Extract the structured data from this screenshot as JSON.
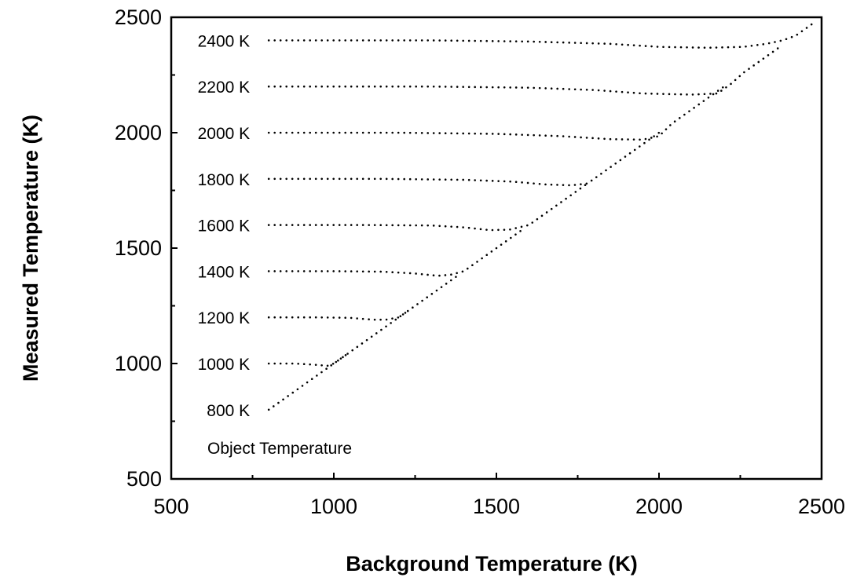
{
  "chart_data": {
    "type": "scatter",
    "title": "",
    "xlabel": "Background Temperature (K)",
    "ylabel": "Measured Temperature (K)",
    "xlim": [
      500,
      2500
    ],
    "ylim": [
      500,
      2500
    ],
    "x_ticks": [
      "500",
      "1000",
      "1500",
      "2000",
      "2500"
    ],
    "y_ticks": [
      "500",
      "1000",
      "1500",
      "2000",
      "2500"
    ],
    "grid": false,
    "legend": "none",
    "annotation": "Object Temperature",
    "series": [
      {
        "name": "800 K",
        "object_temperature": 800,
        "x": [
          800,
          860,
          920,
          980,
          1040
        ],
        "y": [
          800,
          860,
          920,
          980,
          1040
        ]
      },
      {
        "name": "1000 K",
        "object_temperature": 1000,
        "x": [
          800,
          880,
          940,
          980,
          1000,
          1040,
          1100,
          1160,
          1220
        ],
        "y": [
          1000,
          1000,
          995,
          990,
          1000,
          1040,
          1100,
          1160,
          1220
        ]
      },
      {
        "name": "1200 K",
        "object_temperature": 1200,
        "x": [
          800,
          950,
          1050,
          1120,
          1160,
          1200,
          1260,
          1320,
          1380
        ],
        "y": [
          1200,
          1200,
          1198,
          1190,
          1190,
          1200,
          1260,
          1320,
          1380
        ]
      },
      {
        "name": "1400 K",
        "object_temperature": 1400,
        "x": [
          800,
          1000,
          1150,
          1250,
          1320,
          1360,
          1400,
          1460,
          1520,
          1580
        ],
        "y": [
          1400,
          1400,
          1398,
          1390,
          1380,
          1385,
          1400,
          1460,
          1520,
          1580
        ]
      },
      {
        "name": "1600 K",
        "object_temperature": 1600,
        "x": [
          800,
          1100,
          1300,
          1400,
          1480,
          1540,
          1600,
          1660,
          1720,
          1780
        ],
        "y": [
          1600,
          1600,
          1598,
          1590,
          1578,
          1580,
          1600,
          1660,
          1720,
          1780
        ]
      },
      {
        "name": "1800 K",
        "object_temperature": 1800,
        "x": [
          800,
          1150,
          1400,
          1550,
          1650,
          1730,
          1780,
          1820,
          1880,
          1940,
          2000
        ],
        "y": [
          1800,
          1800,
          1796,
          1788,
          1776,
          1772,
          1780,
          1820,
          1880,
          1940,
          2000
        ]
      },
      {
        "name": "2000 K",
        "object_temperature": 2000,
        "x": [
          800,
          1200,
          1500,
          1700,
          1850,
          1950,
          2000,
          2040,
          2080,
          2140,
          2200
        ],
        "y": [
          2000,
          2000,
          1995,
          1985,
          1972,
          1970,
          1985,
          2040,
          2080,
          2140,
          2200
        ]
      },
      {
        "name": "2200 K",
        "object_temperature": 2200,
        "x": [
          800,
          1300,
          1600,
          1800,
          1950,
          2100,
          2180,
          2220,
          2260,
          2320,
          2380
        ],
        "y": [
          2200,
          2200,
          2195,
          2185,
          2170,
          2165,
          2170,
          2210,
          2260,
          2320,
          2380
        ]
      },
      {
        "name": "2400 K",
        "object_temperature": 2400,
        "x": [
          800,
          1300,
          1600,
          1850,
          2000,
          2150,
          2260,
          2330,
          2380,
          2420,
          2460,
          2480
        ],
        "y": [
          2400,
          2400,
          2395,
          2385,
          2372,
          2368,
          2372,
          2385,
          2400,
          2420,
          2460,
          2480
        ]
      }
    ]
  }
}
